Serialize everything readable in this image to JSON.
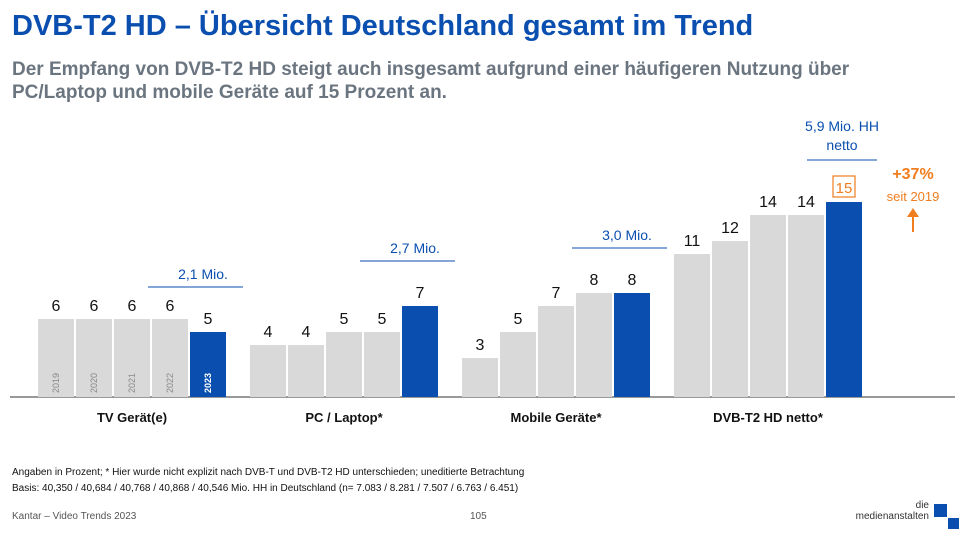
{
  "title": "DVB-T2 HD – Übersicht Deutschland gesamt im Trend",
  "subtitle": "Der Empfang von DVB-T2 HD steigt auch insgesamt aufgrund einer häufigeren Nutzung über PC/Laptop und mobile Geräte auf 15 Prozent an.",
  "chart_data": {
    "type": "bar",
    "title": "",
    "xlabel": "",
    "ylabel": "",
    "ylim": [
      0,
      17
    ],
    "grid": false,
    "years": [
      "2019",
      "2020",
      "2021",
      "2022",
      "2023"
    ],
    "categories": [
      "TV Gerät(e)",
      "PC / Laptop*",
      "Mobile Geräte*",
      "DVB-T2 HD netto*"
    ],
    "values": [
      [
        6,
        6,
        6,
        6,
        5
      ],
      [
        4,
        4,
        5,
        5,
        7
      ],
      [
        3,
        5,
        7,
        8,
        8
      ],
      [
        11,
        12,
        14,
        14,
        15
      ]
    ],
    "highlight_labels": [
      "2,1 Mio.",
      "2,7 Mio.",
      "3,0 Mio.",
      "5,9 Mio. HH netto"
    ],
    "highlight_boxed_value": "15",
    "trend": {
      "change": "+37%",
      "since": "seit 2019"
    },
    "colors": {
      "past": "#d9d9d9",
      "current": "#0a4fb0",
      "accent": "#f07d1e",
      "baseline": "#333333"
    }
  },
  "footnote": {
    "line1": "Angaben in Prozent; * Hier wurde nicht explizit nach DVB-T und DVB-T2 HD unterschieden; uneditierte Betrachtung",
    "line2": "Basis: 40,350 / 40,684 / 40,768 / 40,868 / 40,546 Mio. HH in Deutschland (n= 7.083 / 8.281 / 7.507 / 6.763 / 6.451)"
  },
  "footer": {
    "source": "Kantar – Video Trends 2023",
    "page": "105"
  },
  "logo": {
    "line1": "die",
    "line2": "medienanstalten"
  }
}
